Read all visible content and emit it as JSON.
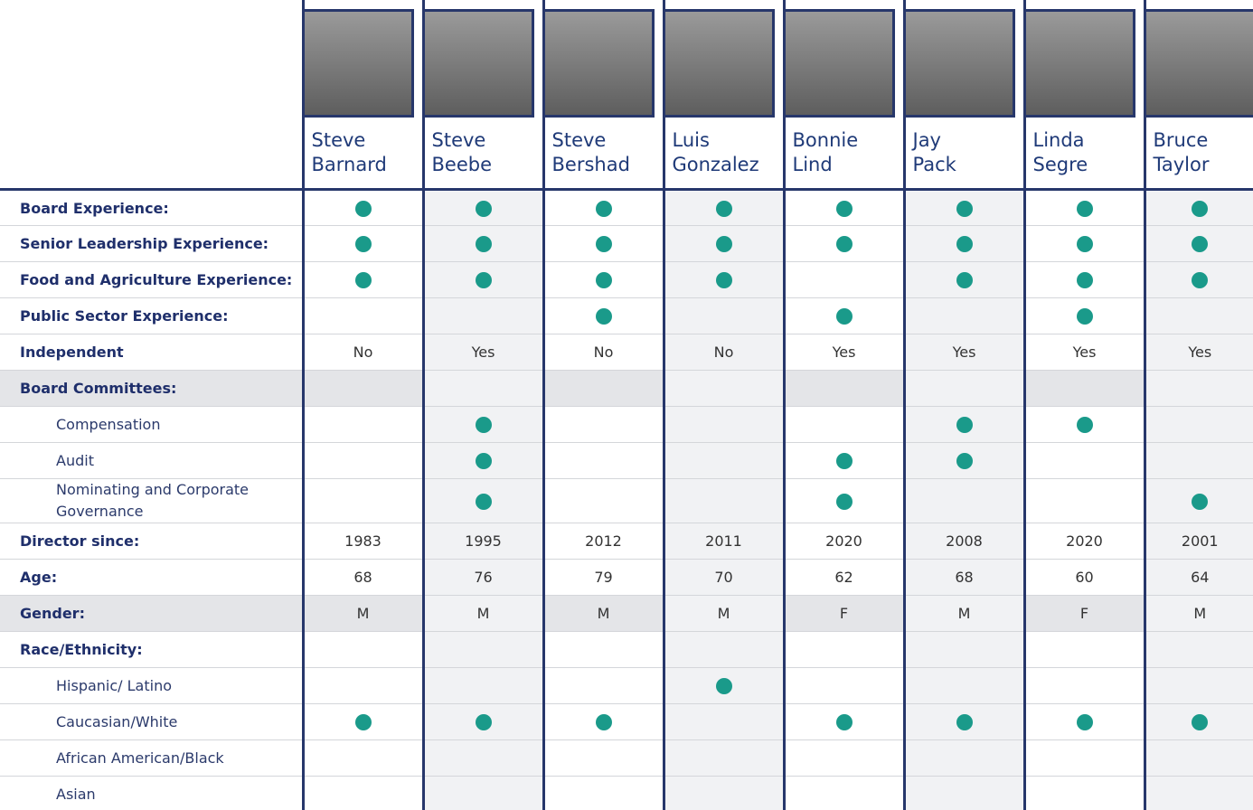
{
  "directors": [
    {
      "first": "Steve",
      "last": "Barnard"
    },
    {
      "first": "Steve",
      "last": "Beebe"
    },
    {
      "first": "Steve",
      "last": "Bershad"
    },
    {
      "first": "Luis",
      "last": "Gonzalez"
    },
    {
      "first": "Bonnie",
      "last": "Lind"
    },
    {
      "first": "Jay",
      "last": "Pack"
    },
    {
      "first": "Linda",
      "last": "Segre"
    },
    {
      "first": "Bruce",
      "last": "Taylor"
    }
  ],
  "rows": [
    {
      "label": "Board Experience:",
      "cells": [
        true,
        true,
        true,
        true,
        true,
        true,
        true,
        true
      ]
    },
    {
      "label": "Senior Leadership Experience:",
      "cells": [
        true,
        true,
        true,
        true,
        true,
        true,
        true,
        true
      ]
    },
    {
      "label": "Food and Agriculture Experience:",
      "cells": [
        true,
        true,
        true,
        true,
        null,
        true,
        true,
        true
      ]
    },
    {
      "label": "Public Sector Experience:",
      "cells": [
        null,
        null,
        true,
        null,
        true,
        null,
        true,
        null
      ]
    },
    {
      "label": "Independent",
      "cells": [
        "No",
        "Yes",
        "No",
        "No",
        "Yes",
        "Yes",
        "Yes",
        "Yes"
      ]
    },
    {
      "label": "Board Committees:",
      "rows": [
        {
          "label": "Compensation",
          "cells": [
            null,
            true,
            null,
            null,
            null,
            true,
            true,
            null
          ]
        },
        {
          "label": "Audit",
          "cells": [
            null,
            true,
            null,
            null,
            true,
            true,
            null,
            null
          ]
        },
        {
          "label": "Nominating and Corporate Governance",
          "cells": [
            null,
            true,
            null,
            null,
            true,
            null,
            null,
            true
          ]
        }
      ]
    },
    {
      "label": "Director since:",
      "cells": [
        1983,
        1995,
        2012,
        2011,
        2020,
        2008,
        2020,
        2001
      ]
    },
    {
      "label": "Age:",
      "cells": [
        68,
        76,
        79,
        70,
        62,
        68,
        60,
        64
      ]
    },
    {
      "label": "Gender:",
      "cells": [
        "M",
        "M",
        "M",
        "M",
        "F",
        "M",
        "F",
        "M"
      ]
    },
    {
      "label": "Race/Ethnicity:",
      "rows": [
        {
          "label": "Hispanic/ Latino",
          "cells": [
            null,
            null,
            null,
            true,
            null,
            null,
            null,
            null
          ]
        },
        {
          "label": "Caucasian/White",
          "cells": [
            true,
            true,
            true,
            null,
            true,
            true,
            true,
            true
          ]
        },
        {
          "label": "African American/Black",
          "cells": [
            null,
            null,
            null,
            null,
            null,
            null,
            null,
            null
          ]
        },
        {
          "label": "Asian",
          "cells": [
            null,
            null,
            null,
            null,
            null,
            null,
            null,
            null
          ]
        }
      ]
    }
  ]
}
